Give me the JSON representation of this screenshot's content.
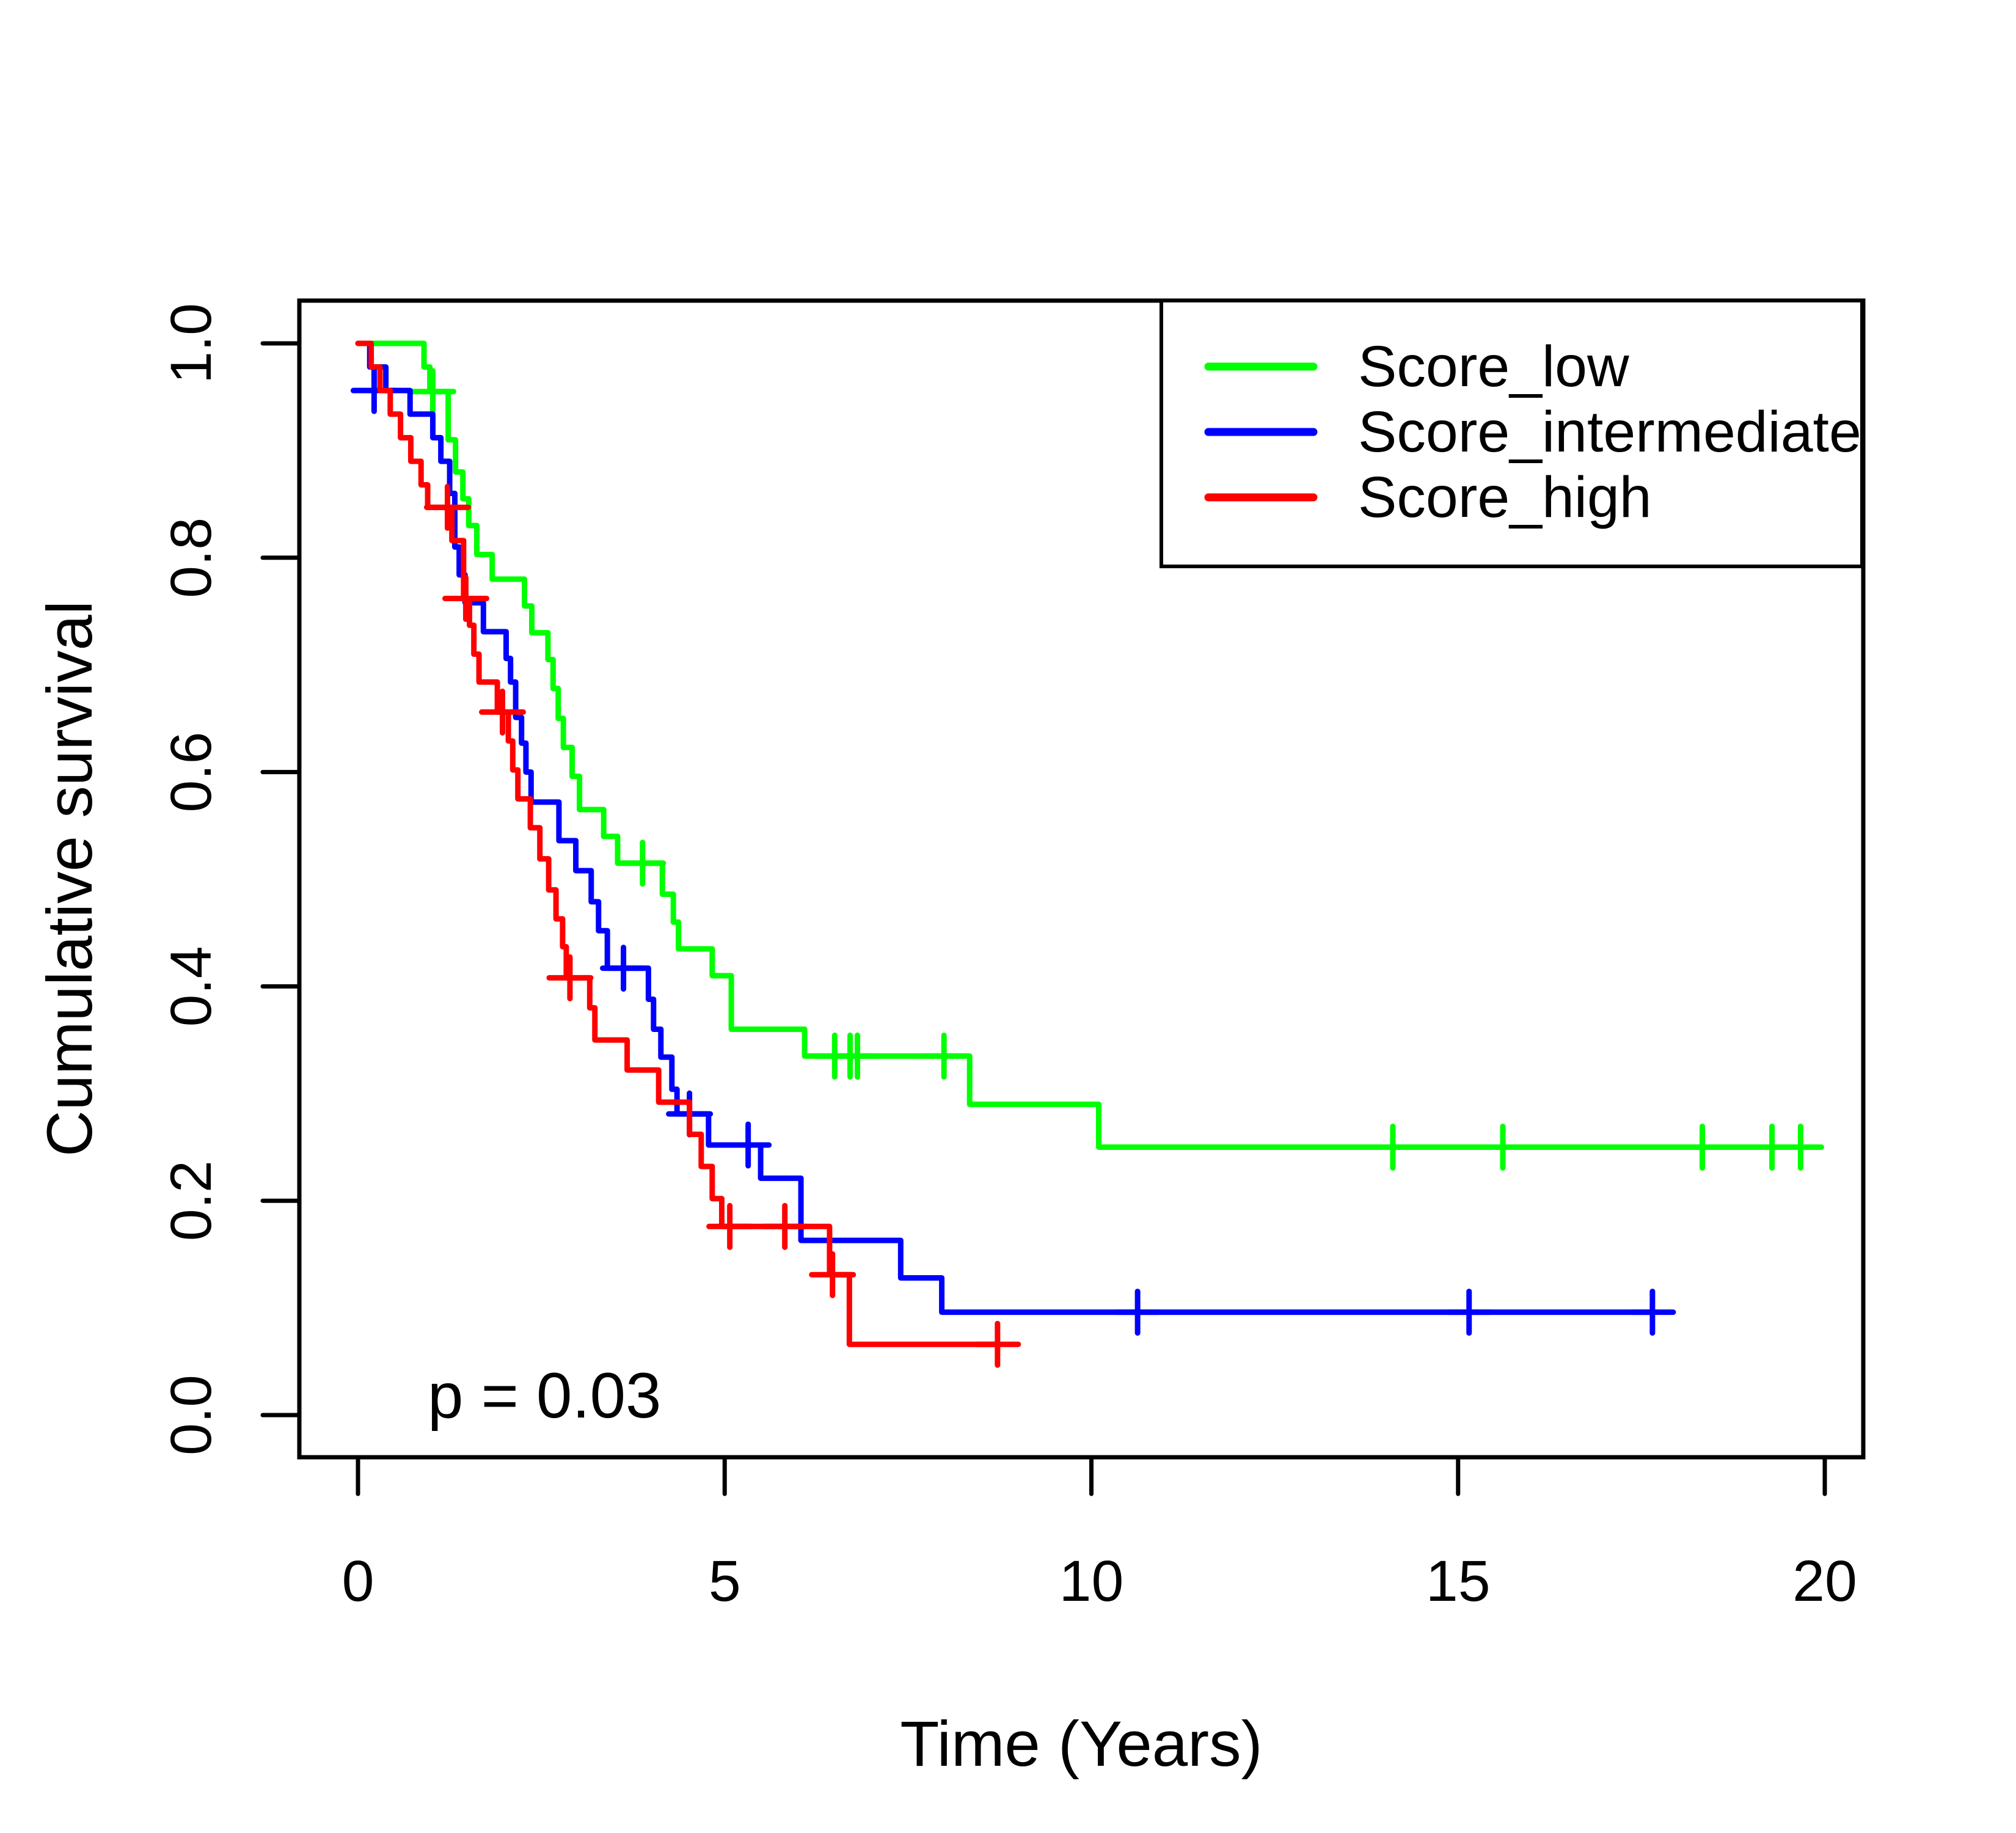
{
  "colors": {
    "background": "#FFFFFF",
    "axis": "#000000",
    "score_low": "#00FF00",
    "score_intermediate": "#0000FF",
    "score_high": "#FF0000"
  },
  "chart_data": {
    "type": "line",
    "variant": "kaplan_meier_step_curves",
    "title": "",
    "xlabel": "Time (Years)",
    "ylabel": "Cumulative survival",
    "p_value": "p = 0.03",
    "grid": false,
    "xlim": [
      -0.8,
      20.5
    ],
    "ylim": [
      -0.04,
      1.04
    ],
    "x_tick_values": [
      0,
      5,
      10,
      15,
      20
    ],
    "x_tick_labels": [
      "0",
      "5",
      "10",
      "15",
      "20"
    ],
    "y_tick_values": [
      0.0,
      0.2,
      0.4,
      0.6,
      0.8,
      1.0
    ],
    "y_tick_labels": [
      "0.0",
      "0.2",
      "0.4",
      "0.6",
      "0.8",
      "1.0"
    ],
    "legend_position": "top-right",
    "legend_entries": [
      "Score_low",
      "Score_intermediate",
      "Score_high"
    ],
    "series": [
      {
        "name": "Score_low",
        "color": "#00FF00",
        "start": [
          0,
          1.0
        ],
        "steps": [
          [
            0.9,
            0.978
          ],
          [
            0.98,
            0.955
          ],
          [
            1.23,
            0.91
          ],
          [
            1.33,
            0.88
          ],
          [
            1.43,
            0.855
          ],
          [
            1.51,
            0.83
          ],
          [
            1.62,
            0.803
          ],
          [
            1.83,
            0.78
          ],
          [
            2.27,
            0.755
          ],
          [
            2.37,
            0.73
          ],
          [
            2.59,
            0.705
          ],
          [
            2.66,
            0.678
          ],
          [
            2.73,
            0.65
          ],
          [
            2.8,
            0.623
          ],
          [
            2.92,
            0.596
          ],
          [
            3.02,
            0.565
          ],
          [
            3.35,
            0.54
          ],
          [
            3.54,
            0.515
          ],
          [
            4.15,
            0.486
          ],
          [
            4.3,
            0.46
          ],
          [
            4.37,
            0.435
          ],
          [
            4.83,
            0.41
          ],
          [
            5.09,
            0.36
          ],
          [
            6.09,
            0.335
          ],
          [
            8.34,
            0.29
          ],
          [
            10.1,
            0.25
          ]
        ],
        "censors": [
          [
            1.02,
            0.955
          ],
          [
            3.88,
            0.515
          ],
          [
            6.5,
            0.335
          ],
          [
            6.71,
            0.335
          ],
          [
            6.81,
            0.335
          ],
          [
            7.99,
            0.335
          ],
          [
            14.11,
            0.25
          ],
          [
            15.61,
            0.25
          ],
          [
            18.33,
            0.25
          ],
          [
            19.28,
            0.25
          ],
          [
            19.67,
            0.25
          ]
        ],
        "end_time": 19.75
      },
      {
        "name": "Score_intermediate",
        "color": "#0000FF",
        "start": [
          0,
          1.0
        ],
        "steps": [
          [
            0.16,
            0.978
          ],
          [
            0.38,
            0.956
          ],
          [
            0.71,
            0.934
          ],
          [
            1.02,
            0.912
          ],
          [
            1.13,
            0.89
          ],
          [
            1.25,
            0.86
          ],
          [
            1.32,
            0.81
          ],
          [
            1.38,
            0.784
          ],
          [
            1.46,
            0.758
          ],
          [
            1.71,
            0.731
          ],
          [
            2.02,
            0.706
          ],
          [
            2.08,
            0.684
          ],
          [
            2.15,
            0.651
          ],
          [
            2.23,
            0.627
          ],
          [
            2.29,
            0.6
          ],
          [
            2.36,
            0.572
          ],
          [
            2.74,
            0.536
          ],
          [
            2.97,
            0.508
          ],
          [
            3.18,
            0.479
          ],
          [
            3.28,
            0.452
          ],
          [
            3.4,
            0.417
          ],
          [
            3.96,
            0.388
          ],
          [
            4.03,
            0.36
          ],
          [
            4.13,
            0.334
          ],
          [
            4.28,
            0.304
          ],
          [
            4.35,
            0.281
          ],
          [
            4.78,
            0.252
          ],
          [
            5.49,
            0.221
          ],
          [
            6.04,
            0.163
          ],
          [
            7.4,
            0.128
          ],
          [
            7.96,
            0.096
          ]
        ],
        "censors": [
          [
            0.22,
            0.956
          ],
          [
            3.62,
            0.417
          ],
          [
            4.52,
            0.281
          ],
          [
            5.32,
            0.252
          ],
          [
            10.63,
            0.096
          ],
          [
            15.15,
            0.096
          ],
          [
            17.65,
            0.096
          ]
        ],
        "end_time": 17.65
      },
      {
        "name": "Score_high",
        "color": "#FF0000",
        "start": [
          0,
          1.0
        ],
        "steps": [
          [
            0.18,
            0.978
          ],
          [
            0.3,
            0.956
          ],
          [
            0.44,
            0.934
          ],
          [
            0.58,
            0.912
          ],
          [
            0.72,
            0.89
          ],
          [
            0.86,
            0.868
          ],
          [
            0.95,
            0.847
          ],
          [
            1.28,
            0.816
          ],
          [
            1.44,
            0.762
          ],
          [
            1.52,
            0.737
          ],
          [
            1.58,
            0.71
          ],
          [
            1.65,
            0.684
          ],
          [
            1.9,
            0.656
          ],
          [
            2.05,
            0.629
          ],
          [
            2.11,
            0.602
          ],
          [
            2.18,
            0.575
          ],
          [
            2.35,
            0.548
          ],
          [
            2.48,
            0.519
          ],
          [
            2.6,
            0.49
          ],
          [
            2.7,
            0.463
          ],
          [
            2.79,
            0.437
          ],
          [
            2.84,
            0.408
          ],
          [
            3.16,
            0.38
          ],
          [
            3.23,
            0.35
          ],
          [
            3.67,
            0.322
          ],
          [
            4.1,
            0.292
          ],
          [
            4.52,
            0.262
          ],
          [
            4.68,
            0.232
          ],
          [
            4.83,
            0.202
          ],
          [
            4.96,
            0.176
          ],
          [
            6.43,
            0.131
          ],
          [
            6.7,
            0.066
          ]
        ],
        "censors": [
          [
            1.22,
            0.847
          ],
          [
            1.47,
            0.762
          ],
          [
            1.97,
            0.656
          ],
          [
            2.89,
            0.408
          ],
          [
            5.07,
            0.176
          ],
          [
            5.82,
            0.176
          ],
          [
            6.47,
            0.131
          ],
          [
            8.72,
            0.066
          ]
        ],
        "end_time": 8.75
      }
    ]
  }
}
